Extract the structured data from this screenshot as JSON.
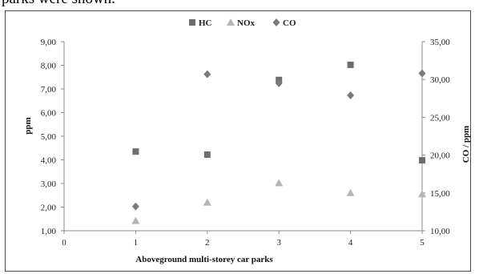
{
  "caption": "parks were shown.",
  "chart_data": {
    "type": "scatter",
    "title": "",
    "xlabel": "Aboveground multi-storey car parks",
    "ylabel": "ppm",
    "y2label": "CO / ppm",
    "xlim": [
      0,
      5
    ],
    "ylim": [
      1,
      9
    ],
    "y2lim": [
      10,
      35
    ],
    "x_ticks": [
      "0",
      "1",
      "2",
      "3",
      "4",
      "5"
    ],
    "y_ticks": [
      "1,00",
      "2,00",
      "3,00",
      "4,00",
      "5,00",
      "6,00",
      "7,00",
      "8,00",
      "9,00"
    ],
    "y2_ticks": [
      "10,00",
      "15,00",
      "20,00",
      "25,00",
      "30,00",
      "35,00"
    ],
    "grid": false,
    "legend_position": "top-center",
    "series": [
      {
        "name": "HC",
        "axis": "left",
        "marker": "square",
        "color": "#6e6e6e",
        "x": [
          1,
          2,
          3,
          4,
          5
        ],
        "y": [
          4.35,
          4.22,
          7.38,
          8.02,
          3.98
        ]
      },
      {
        "name": "NOx",
        "axis": "left",
        "marker": "triangle",
        "color": "#b5b5b5",
        "x": [
          1,
          2,
          3,
          4,
          5
        ],
        "y": [
          1.42,
          2.2,
          3.02,
          2.6,
          2.55
        ]
      },
      {
        "name": "CO",
        "axis": "right",
        "marker": "diamond",
        "color": "#7a7a7a",
        "x": [
          1,
          2,
          3,
          4,
          5
        ],
        "y": [
          13.2,
          30.7,
          29.5,
          27.9,
          30.8
        ]
      }
    ]
  }
}
